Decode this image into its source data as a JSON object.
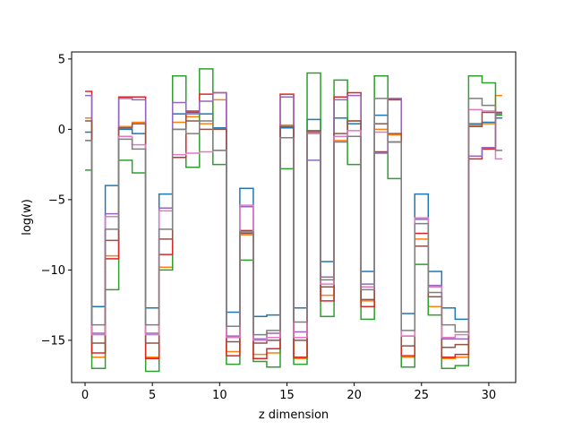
{
  "chart_data": {
    "type": "line",
    "drawstyle": "steps-mid",
    "xlabel": "z dimension",
    "ylabel": "log(w)",
    "xlim": [
      -1.0,
      32.0
    ],
    "ylim": [
      -18.0,
      5.5
    ],
    "xticks": [
      0,
      5,
      10,
      15,
      20,
      25,
      30
    ],
    "yticks": [
      -15,
      -10,
      -5,
      0,
      5
    ],
    "xtick_labels": [
      "0",
      "5",
      "10",
      "15",
      "20",
      "25",
      "30"
    ],
    "ytick_labels": [
      "−15",
      "−10",
      "−5",
      "0",
      "5"
    ],
    "grid": false,
    "legend": false,
    "x": [
      0,
      1,
      2,
      3,
      4,
      5,
      6,
      7,
      8,
      9,
      10,
      11,
      12,
      13,
      14,
      15,
      16,
      17,
      18,
      19,
      20,
      21,
      22,
      23,
      24,
      25,
      26,
      27,
      28,
      29,
      30,
      31
    ],
    "series": [
      {
        "color": "#1f77b4",
        "values": [
          -0.2,
          -12.6,
          -4.0,
          0.0,
          -0.3,
          -12.7,
          -4.6,
          1.1,
          1.2,
          1.1,
          0.1,
          -13.0,
          -4.2,
          -13.3,
          -13.2,
          0.1,
          -12.7,
          0.7,
          -9.4,
          0.8,
          0.4,
          -10.1,
          1.0,
          -0.9,
          -13.1,
          -4.6,
          -10.1,
          -12.7,
          -13.5,
          0.4,
          0.5,
          0.8
        ]
      },
      {
        "color": "#ff7f0e",
        "values": [
          0.8,
          -16.2,
          -9.0,
          0.2,
          0.5,
          -16.2,
          -9.8,
          0.5,
          0.9,
          0.4,
          2.1,
          -15.8,
          -7.5,
          -16.0,
          -15.9,
          0.3,
          -16.3,
          -0.2,
          -11.8,
          -0.8,
          0.6,
          -12.2,
          0.0,
          -0.4,
          -16.2,
          -7.8,
          -12.6,
          -16.3,
          -16.2,
          0.3,
          0.4,
          2.4
        ]
      },
      {
        "color": "#2ca02c",
        "values": [
          -2.9,
          -17.0,
          -11.4,
          -2.2,
          -3.1,
          -17.2,
          -10.0,
          3.8,
          -2.7,
          4.3,
          -2.5,
          -16.7,
          -9.3,
          -16.5,
          -16.9,
          -2.8,
          -16.7,
          4.0,
          -13.3,
          3.5,
          -2.5,
          -13.5,
          3.8,
          -3.5,
          -16.9,
          -9.6,
          -13.2,
          -17.0,
          -16.8,
          3.8,
          3.3,
          1.0
        ]
      },
      {
        "color": "#d62728",
        "values": [
          2.7,
          -15.9,
          -9.2,
          2.3,
          2.3,
          -16.3,
          -8.9,
          -2.0,
          1.3,
          2.5,
          2.6,
          -16.1,
          -7.2,
          -16.3,
          -15.6,
          2.5,
          -16.2,
          -0.2,
          -12.2,
          2.3,
          2.6,
          -12.6,
          -1.6,
          2.1,
          -16.1,
          -7.4,
          -11.9,
          -16.2,
          -16.0,
          -2.1,
          -1.4,
          1.2
        ]
      },
      {
        "color": "#9467bd",
        "values": [
          2.4,
          -14.5,
          -6.0,
          2.2,
          2.1,
          -14.5,
          -5.6,
          1.9,
          1.1,
          2.0,
          2.6,
          -14.7,
          -5.5,
          -14.9,
          -14.5,
          2.3,
          -14.4,
          -2.2,
          -10.5,
          2.1,
          2.4,
          -11.0,
          -1.7,
          2.2,
          -14.7,
          -6.4,
          -11.1,
          -14.9,
          -14.9,
          -1.9,
          -1.3,
          1.1
        ]
      },
      {
        "color": "#8c564b",
        "values": [
          0.6,
          -15.2,
          -7.9,
          0.1,
          0.4,
          -15.2,
          -7.8,
          0.0,
          0.6,
          0.0,
          0.0,
          -15.1,
          -7.4,
          -15.2,
          -15.0,
          0.2,
          -15.0,
          -0.1,
          -11.2,
          -0.3,
          0.6,
          -12.1,
          0.4,
          -0.3,
          -15.4,
          -8.3,
          -11.9,
          -15.5,
          -15.3,
          0.2,
          1.2,
          1.2
        ]
      },
      {
        "color": "#e377c2",
        "values": [
          -0.8,
          -14.6,
          -6.2,
          -0.5,
          -1.1,
          -14.6,
          -5.8,
          -1.8,
          -1.7,
          -1.6,
          -1.5,
          -14.8,
          -5.4,
          -15.0,
          -14.8,
          -0.6,
          -14.8,
          -0.3,
          -11.0,
          -0.5,
          -0.1,
          -11.2,
          -0.2,
          -0.9,
          -14.7,
          -6.3,
          -11.2,
          -14.8,
          -14.6,
          1.4,
          1.3,
          -2.1
        ]
      },
      {
        "color": "#7f7f7f",
        "values": [
          -0.8,
          -13.9,
          -7.1,
          -0.7,
          -1.4,
          -13.9,
          -7.1,
          0.0,
          -0.3,
          0.6,
          -1.5,
          -14.0,
          -7.3,
          -14.6,
          -14.3,
          -0.6,
          -13.7,
          -0.2,
          -10.7,
          -0.9,
          -0.5,
          -11.4,
          2.2,
          -0.9,
          -14.3,
          -6.7,
          -11.6,
          -13.9,
          -14.4,
          2.2,
          1.7,
          -1.5
        ]
      }
    ]
  }
}
